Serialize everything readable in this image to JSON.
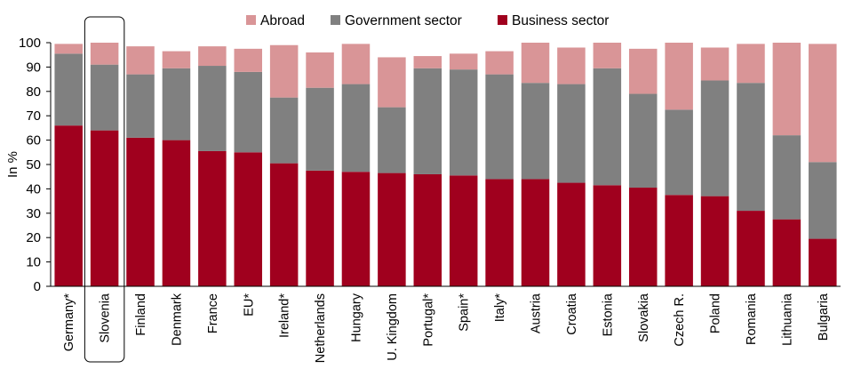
{
  "chart_data": {
    "type": "bar",
    "stacked": true,
    "ylabel": "In %",
    "ylim": [
      0,
      100
    ],
    "yticks": [
      0,
      10,
      20,
      30,
      40,
      50,
      60,
      70,
      80,
      90,
      100
    ],
    "grid": false,
    "legend_position": "top",
    "highlighted_category": "Slovenia",
    "categories": [
      "Germany*",
      "Slovenia",
      "Finland",
      "Denmark",
      "France",
      "EU*",
      "Ireland*",
      "Netherlands",
      "Hungary",
      "U. Kingdom",
      "Portugal*",
      "Spain*",
      "Italy*",
      "Austria",
      "Croatia",
      "Estonia",
      "Slovakia",
      "Czech R.",
      "Poland",
      "Romania",
      "Lithuania",
      "Bulgaria"
    ],
    "series": [
      {
        "name": "Business sector",
        "color": "#a0001e",
        "values": [
          66,
          64,
          61,
          60,
          55.5,
          55,
          50.5,
          47.5,
          47,
          46.5,
          46,
          45.5,
          44,
          44,
          42.5,
          41.5,
          40.5,
          37.5,
          37,
          31,
          27.5,
          19.5
        ]
      },
      {
        "name": "Government sector",
        "color": "#808080",
        "values": [
          29.5,
          27,
          26,
          29.5,
          35,
          33,
          27,
          34,
          36,
          27,
          43.5,
          43.5,
          43,
          39.5,
          40.5,
          48,
          38.5,
          35,
          47.5,
          52.5,
          34.5,
          31.5
        ]
      },
      {
        "name": "Abroad",
        "color": "#d99597",
        "values": [
          4,
          9,
          11.5,
          7,
          8,
          9.5,
          21.5,
          14.5,
          16.5,
          20.5,
          5,
          6.5,
          9.5,
          16.5,
          15,
          10.5,
          18.5,
          27.5,
          13.5,
          16,
          38,
          48.5
        ]
      }
    ],
    "legend": [
      "Abroad",
      "Government sector",
      "Business sector"
    ]
  }
}
